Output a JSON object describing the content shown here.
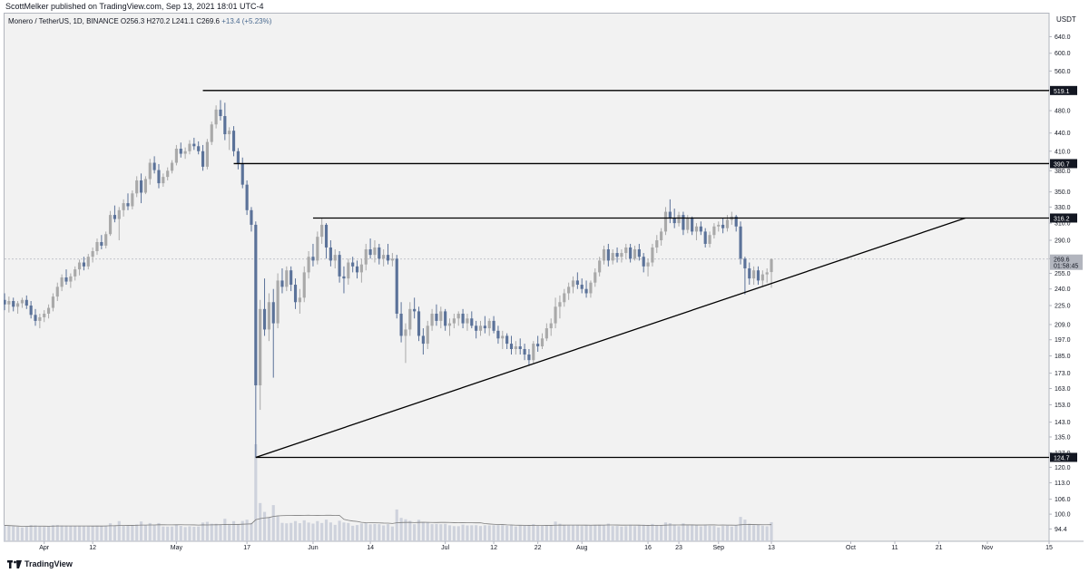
{
  "header": {
    "publisher": "ScottMelker published on TradingView.com, Sep 13, 2021 18:01 UTC-4"
  },
  "symbol": {
    "name": "Monero / TetherUS, 1D, BINANCE",
    "open_label": "O",
    "open": "256.3",
    "high_label": "H",
    "high": "270.2",
    "low_label": "L",
    "low": "241.1",
    "close_label": "C",
    "close": "269.6",
    "change": "+13.4 (+5.23%)"
  },
  "footer": {
    "brand": "TradingView"
  },
  "colors": {
    "background": "#f2f2f2",
    "bull_candle": "#a9a9a9",
    "bear_candle": "#5b7299",
    "volume_bar": "#c8cdd8",
    "volume_ma": "#7b7b7b",
    "level_line": "#000000",
    "price_tag_bg": "#131722",
    "last_price_tag_bg": "#b2b5be"
  },
  "chart_data": {
    "type": "candlestick",
    "title": "Monero / TetherUS, 1D, BINANCE",
    "currency_label": "USDT",
    "y_scale": "log",
    "ylim": [
      90,
      700
    ],
    "y_ticks": [
      "640.0",
      "600.0",
      "560.0",
      "520.0",
      "480.0",
      "440.0",
      "410.0",
      "380.0",
      "350.0",
      "330.0",
      "310.0",
      "290.0",
      "270.0",
      "255.0",
      "240.0",
      "225.0",
      "209.0",
      "197.0",
      "185.0",
      "173.0",
      "163.0",
      "153.0",
      "143.0",
      "135.0",
      "127.0",
      "120.0",
      "113.0",
      "106.0",
      "100.0",
      "94.4"
    ],
    "x_ticks": [
      {
        "label": "Apr",
        "date": "2021-04-01"
      },
      {
        "label": "12",
        "date": "2021-04-12"
      },
      {
        "label": "May",
        "date": "2021-05-01"
      },
      {
        "label": "17",
        "date": "2021-05-17"
      },
      {
        "label": "Jun",
        "date": "2021-06-01"
      },
      {
        "label": "14",
        "date": "2021-06-14"
      },
      {
        "label": "Jul",
        "date": "2021-07-01"
      },
      {
        "label": "12",
        "date": "2021-07-12"
      },
      {
        "label": "22",
        "date": "2021-07-22"
      },
      {
        "label": "Aug",
        "date": "2021-08-01"
      },
      {
        "label": "16",
        "date": "2021-08-16"
      },
      {
        "label": "23",
        "date": "2021-08-23"
      },
      {
        "label": "Sep",
        "date": "2021-09-01"
      },
      {
        "label": "13",
        "date": "2021-09-13"
      },
      {
        "label": "Oct",
        "date": "2021-10-01"
      },
      {
        "label": "11",
        "date": "2021-10-11"
      },
      {
        "label": "21",
        "date": "2021-10-21"
      },
      {
        "label": "Nov",
        "date": "2021-11-01"
      },
      {
        "label": "15",
        "date": "2021-11-15"
      }
    ],
    "x_range": [
      "2021-03-23",
      "2021-11-15"
    ],
    "horizontal_levels": [
      {
        "price": 519.1,
        "label": "519.1",
        "from_date": "2021-05-07"
      },
      {
        "price": 390.7,
        "label": "390.7",
        "from_date": "2021-05-14"
      },
      {
        "price": 316.2,
        "label": "316.2",
        "from_date": "2021-06-01"
      },
      {
        "price": 124.7,
        "label": "124.7",
        "from_date": "2021-05-19"
      }
    ],
    "trendline": {
      "from": {
        "date": "2021-05-19",
        "price": 124.7
      },
      "to": {
        "date": "2021-10-27",
        "price": 316.2
      }
    },
    "last_price": {
      "value": 269.6,
      "label": "269.6",
      "countdown": "01:58:45"
    },
    "ohlc": [
      [
        "2021-03-23",
        230,
        236,
        221,
        226
      ],
      [
        "2021-03-24",
        226,
        233,
        219,
        229
      ],
      [
        "2021-03-25",
        229,
        232,
        220,
        224
      ],
      [
        "2021-03-26",
        224,
        229,
        218,
        227
      ],
      [
        "2021-03-27",
        227,
        232,
        223,
        230
      ],
      [
        "2021-03-28",
        230,
        234,
        222,
        225
      ],
      [
        "2021-03-29",
        225,
        229,
        214,
        217
      ],
      [
        "2021-03-30",
        217,
        222,
        208,
        212
      ],
      [
        "2021-03-31",
        212,
        218,
        206,
        215
      ],
      [
        "2021-04-01",
        215,
        221,
        211,
        218
      ],
      [
        "2021-04-02",
        218,
        226,
        214,
        223
      ],
      [
        "2021-04-03",
        223,
        236,
        220,
        233
      ],
      [
        "2021-04-04",
        233,
        246,
        229,
        242
      ],
      [
        "2021-04-05",
        242,
        254,
        238,
        251
      ],
      [
        "2021-04-06",
        251,
        259,
        244,
        247
      ],
      [
        "2021-04-07",
        247,
        255,
        241,
        252
      ],
      [
        "2021-04-08",
        252,
        262,
        248,
        259
      ],
      [
        "2021-04-09",
        259,
        269,
        253,
        266
      ],
      [
        "2021-04-10",
        266,
        272,
        258,
        262
      ],
      [
        "2021-04-11",
        262,
        275,
        259,
        272
      ],
      [
        "2021-04-12",
        272,
        282,
        266,
        278
      ],
      [
        "2021-04-13",
        278,
        292,
        274,
        288
      ],
      [
        "2021-04-14",
        288,
        296,
        280,
        284
      ],
      [
        "2021-04-15",
        284,
        300,
        281,
        297
      ],
      [
        "2021-04-16",
        297,
        325,
        295,
        320
      ],
      [
        "2021-04-17",
        320,
        332,
        311,
        315
      ],
      [
        "2021-04-18",
        315,
        330,
        290,
        326
      ],
      [
        "2021-04-19",
        326,
        340,
        318,
        335
      ],
      [
        "2021-04-20",
        335,
        348,
        326,
        331
      ],
      [
        "2021-04-21",
        331,
        352,
        327,
        348
      ],
      [
        "2021-04-22",
        348,
        372,
        343,
        366
      ],
      [
        "2021-04-23",
        366,
        376,
        335,
        349
      ],
      [
        "2021-04-24",
        349,
        372,
        347,
        368
      ],
      [
        "2021-04-25",
        368,
        398,
        360,
        392
      ],
      [
        "2021-04-26",
        392,
        402,
        376,
        381
      ],
      [
        "2021-04-27",
        381,
        390,
        355,
        362
      ],
      [
        "2021-04-28",
        362,
        376,
        357,
        371
      ],
      [
        "2021-04-29",
        371,
        385,
        366,
        380
      ],
      [
        "2021-04-30",
        380,
        396,
        376,
        392
      ],
      [
        "2021-05-01",
        392,
        420,
        388,
        414
      ],
      [
        "2021-05-02",
        414,
        424,
        400,
        406
      ],
      [
        "2021-05-03",
        406,
        416,
        398,
        410
      ],
      [
        "2021-05-04",
        410,
        428,
        405,
        422
      ],
      [
        "2021-05-05",
        422,
        432,
        412,
        418
      ],
      [
        "2021-05-06",
        418,
        426,
        405,
        410
      ],
      [
        "2021-05-07",
        410,
        420,
        380,
        386
      ],
      [
        "2021-05-08",
        386,
        430,
        382,
        425
      ],
      [
        "2021-05-09",
        425,
        460,
        420,
        455
      ],
      [
        "2021-05-10",
        455,
        490,
        448,
        482
      ],
      [
        "2021-05-11",
        482,
        500,
        462,
        470
      ],
      [
        "2021-05-12",
        470,
        495,
        428,
        438
      ],
      [
        "2021-05-13",
        438,
        450,
        412,
        444
      ],
      [
        "2021-05-14",
        444,
        452,
        402,
        410
      ],
      [
        "2021-05-15",
        410,
        415,
        382,
        390
      ],
      [
        "2021-05-16",
        390,
        400,
        355,
        360
      ],
      [
        "2021-05-17",
        360,
        366,
        320,
        326
      ],
      [
        "2021-05-18",
        326,
        330,
        300,
        308
      ],
      [
        "2021-05-19",
        308,
        312,
        124.7,
        165
      ],
      [
        "2021-05-20",
        165,
        230,
        150,
        222
      ],
      [
        "2021-05-21",
        222,
        250,
        200,
        205
      ],
      [
        "2021-05-22",
        205,
        236,
        196,
        228
      ],
      [
        "2021-05-23",
        228,
        240,
        170,
        210
      ],
      [
        "2021-05-24",
        210,
        255,
        206,
        248
      ],
      [
        "2021-05-25",
        248,
        260,
        236,
        242
      ],
      [
        "2021-05-26",
        242,
        262,
        238,
        258
      ],
      [
        "2021-05-27",
        258,
        262,
        238,
        244
      ],
      [
        "2021-05-28",
        244,
        250,
        222,
        228
      ],
      [
        "2021-05-29",
        228,
        240,
        218,
        232
      ],
      [
        "2021-05-30",
        232,
        262,
        228,
        256
      ],
      [
        "2021-05-31",
        256,
        278,
        250,
        272
      ],
      [
        "2021-06-01",
        272,
        286,
        262,
        268
      ],
      [
        "2021-06-02",
        268,
        300,
        264,
        294
      ],
      [
        "2021-06-03",
        294,
        316,
        286,
        308
      ],
      [
        "2021-06-04",
        308,
        310,
        270,
        282
      ],
      [
        "2021-06-05",
        282,
        290,
        262,
        268
      ],
      [
        "2021-06-06",
        268,
        280,
        260,
        274
      ],
      [
        "2021-06-07",
        274,
        278,
        246,
        252
      ],
      [
        "2021-06-08",
        252,
        262,
        236,
        250
      ],
      [
        "2021-06-09",
        250,
        270,
        244,
        266
      ],
      [
        "2021-06-10",
        266,
        272,
        256,
        262
      ],
      [
        "2021-06-11",
        262,
        268,
        250,
        256
      ],
      [
        "2021-06-12",
        256,
        270,
        246,
        264
      ],
      [
        "2021-06-13",
        264,
        286,
        258,
        280
      ],
      [
        "2021-06-14",
        280,
        292,
        270,
        274
      ],
      [
        "2021-06-15",
        274,
        290,
        266,
        282
      ],
      [
        "2021-06-16",
        282,
        286,
        264,
        270
      ],
      [
        "2021-06-17",
        270,
        280,
        262,
        274
      ],
      [
        "2021-06-18",
        274,
        286,
        264,
        268
      ],
      [
        "2021-06-19",
        268,
        276,
        262,
        270
      ],
      [
        "2021-06-20",
        270,
        274,
        214,
        218
      ],
      [
        "2021-06-21",
        218,
        228,
        195,
        200
      ],
      [
        "2021-06-22",
        200,
        210,
        180,
        205
      ],
      [
        "2021-06-23",
        205,
        228,
        200,
        222
      ],
      [
        "2021-06-24",
        222,
        232,
        214,
        220
      ],
      [
        "2021-06-25",
        220,
        224,
        196,
        200
      ],
      [
        "2021-06-26",
        200,
        206,
        186,
        194
      ],
      [
        "2021-06-27",
        194,
        212,
        190,
        208
      ],
      [
        "2021-06-28",
        208,
        222,
        204,
        218
      ],
      [
        "2021-06-29",
        218,
        226,
        208,
        212
      ],
      [
        "2021-06-30",
        212,
        224,
        206,
        220
      ],
      [
        "2021-07-01",
        220,
        222,
        204,
        208
      ],
      [
        "2021-07-02",
        208,
        214,
        200,
        210
      ],
      [
        "2021-07-03",
        210,
        218,
        206,
        214
      ],
      [
        "2021-07-04",
        214,
        220,
        208,
        218
      ],
      [
        "2021-07-05",
        218,
        222,
        206,
        210
      ],
      [
        "2021-07-06",
        210,
        218,
        204,
        214
      ],
      [
        "2021-07-07",
        214,
        220,
        206,
        208
      ],
      [
        "2021-07-08",
        208,
        212,
        198,
        204
      ],
      [
        "2021-07-09",
        204,
        212,
        200,
        208
      ],
      [
        "2021-07-10",
        208,
        216,
        202,
        206
      ],
      [
        "2021-07-11",
        206,
        214,
        200,
        212
      ],
      [
        "2021-07-12",
        212,
        216,
        202,
        204
      ],
      [
        "2021-07-13",
        204,
        208,
        194,
        198
      ],
      [
        "2021-07-14",
        198,
        204,
        190,
        200
      ],
      [
        "2021-07-15",
        200,
        202,
        190,
        194
      ],
      [
        "2021-07-16",
        194,
        200,
        186,
        190
      ],
      [
        "2021-07-17",
        190,
        196,
        186,
        192
      ],
      [
        "2021-07-18",
        192,
        198,
        186,
        190
      ],
      [
        "2021-07-19",
        190,
        194,
        182,
        186
      ],
      [
        "2021-07-20",
        186,
        190,
        178,
        182
      ],
      [
        "2021-07-21",
        182,
        196,
        180,
        194
      ],
      [
        "2021-07-22",
        194,
        200,
        188,
        192
      ],
      [
        "2021-07-23",
        192,
        202,
        190,
        198
      ],
      [
        "2021-07-24",
        198,
        210,
        196,
        206
      ],
      [
        "2021-07-25",
        206,
        214,
        200,
        210
      ],
      [
        "2021-07-26",
        210,
        232,
        206,
        224
      ],
      [
        "2021-07-27",
        224,
        234,
        214,
        228
      ],
      [
        "2021-07-28",
        228,
        240,
        224,
        236
      ],
      [
        "2021-07-29",
        236,
        246,
        230,
        242
      ],
      [
        "2021-07-30",
        242,
        252,
        236,
        248
      ],
      [
        "2021-07-31",
        248,
        256,
        240,
        244
      ],
      [
        "2021-08-01",
        244,
        250,
        236,
        240
      ],
      [
        "2021-08-02",
        240,
        248,
        232,
        236
      ],
      [
        "2021-08-03",
        236,
        248,
        232,
        246
      ],
      [
        "2021-08-04",
        246,
        260,
        242,
        256
      ],
      [
        "2021-08-05",
        256,
        272,
        252,
        268
      ],
      [
        "2021-08-06",
        268,
        284,
        264,
        280
      ],
      [
        "2021-08-07",
        280,
        286,
        262,
        268
      ],
      [
        "2021-08-08",
        268,
        280,
        264,
        276
      ],
      [
        "2021-08-09",
        276,
        282,
        266,
        272
      ],
      [
        "2021-08-10",
        272,
        280,
        266,
        276
      ],
      [
        "2021-08-11",
        276,
        286,
        270,
        282
      ],
      [
        "2021-08-12",
        282,
        286,
        266,
        270
      ],
      [
        "2021-08-13",
        270,
        284,
        268,
        280
      ],
      [
        "2021-08-14",
        280,
        286,
        268,
        272
      ],
      [
        "2021-08-15",
        272,
        276,
        256,
        262
      ],
      [
        "2021-08-16",
        262,
        270,
        252,
        266
      ],
      [
        "2021-08-17",
        266,
        286,
        262,
        282
      ],
      [
        "2021-08-18",
        282,
        296,
        276,
        290
      ],
      [
        "2021-08-19",
        290,
        304,
        284,
        300
      ],
      [
        "2021-08-20",
        300,
        330,
        296,
        324
      ],
      [
        "2021-08-21",
        324,
        340,
        310,
        316
      ],
      [
        "2021-08-22",
        316,
        328,
        304,
        310
      ],
      [
        "2021-08-23",
        310,
        324,
        306,
        320
      ],
      [
        "2021-08-24",
        320,
        324,
        296,
        302
      ],
      [
        "2021-08-25",
        302,
        320,
        298,
        316
      ],
      [
        "2021-08-26",
        316,
        318,
        296,
        300
      ],
      [
        "2021-08-27",
        300,
        310,
        290,
        306
      ],
      [
        "2021-08-28",
        306,
        312,
        296,
        300
      ],
      [
        "2021-08-29",
        300,
        304,
        282,
        286
      ],
      [
        "2021-08-30",
        286,
        300,
        282,
        296
      ],
      [
        "2021-08-31",
        296,
        310,
        292,
        306
      ],
      [
        "2021-09-01",
        306,
        312,
        300,
        308
      ],
      [
        "2021-09-02",
        308,
        316,
        298,
        304
      ],
      [
        "2021-09-03",
        304,
        320,
        300,
        314
      ],
      [
        "2021-09-04",
        314,
        324,
        308,
        318
      ],
      [
        "2021-09-05",
        318,
        320,
        300,
        306
      ],
      [
        "2021-09-06",
        306,
        312,
        264,
        270
      ],
      [
        "2021-09-07",
        270,
        272,
        235,
        260
      ],
      [
        "2021-09-08",
        260,
        266,
        244,
        250
      ],
      [
        "2021-09-09",
        250,
        262,
        244,
        258
      ],
      [
        "2021-09-10",
        258,
        262,
        244,
        248
      ],
      [
        "2021-09-11",
        248,
        258,
        242,
        254
      ],
      [
        "2021-09-12",
        254,
        260,
        246,
        256
      ],
      [
        "2021-09-13",
        256.3,
        270.2,
        241.1,
        269.6
      ]
    ],
    "volume_note": "Volume histogram with moving average line at bottom of pane"
  }
}
